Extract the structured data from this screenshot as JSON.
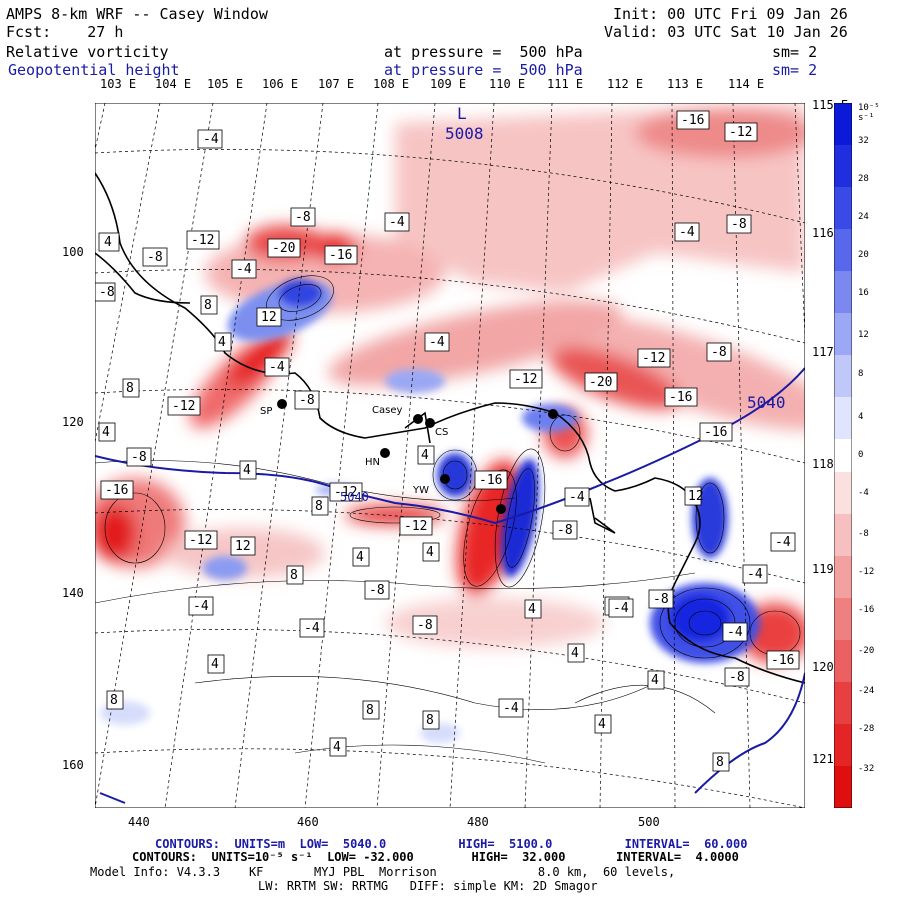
{
  "header": {
    "title": "AMPS 8-km WRF -- Casey Window",
    "forecast_label": "Fcst:    27 h",
    "init": "Init: 00 UTC Fri 09 Jan 26",
    "valid": "Valid: 03 UTC Sat 10 Jan 26",
    "field1": "Relative vorticity",
    "field2": "Geopotential height",
    "pressure1": "at pressure =  500 hPa",
    "pressure2": "at pressure =  500 hPa",
    "sm1": "sm= 2",
    "sm2": "sm= 2"
  },
  "top_longitudes": [
    "103 E",
    "104 E",
    "105 E",
    "106 E",
    "107 E",
    "108 E",
    "109 E",
    "110 E",
    "111 E",
    "112 E",
    "113 E",
    "114 E"
  ],
  "right_longitudes": [
    "115 E",
    "116 E",
    "117 E",
    "118 E",
    "119 E",
    "120 E",
    "121 E"
  ],
  "y_ticks": [
    "100",
    "120",
    "140",
    "160"
  ],
  "x_ticks": [
    "440",
    "460",
    "480",
    "500"
  ],
  "colorbar": {
    "unit": "10⁻⁵ s⁻¹",
    "labels": [
      "32",
      "28",
      "24",
      "20",
      "16",
      "12",
      "8",
      "4",
      "0",
      "-4",
      "-8",
      "-12",
      "-16",
      "-20",
      "-24",
      "-28",
      "-32"
    ]
  },
  "stations": [
    "Casey",
    "CS",
    "HN",
    "YW",
    "SP"
  ],
  "height_labels": [
    "L",
    "5008",
    "5040",
    "5040"
  ],
  "contour_labels": [
    "-4",
    "-16",
    "-12",
    "-8",
    "-8",
    "-4",
    "-4",
    "-8",
    "-12",
    "-20",
    "-16",
    "-8",
    "4",
    "-4",
    "8",
    "12",
    "4",
    "-4",
    "8",
    "-12",
    "4",
    "-8",
    "-4",
    "-12",
    "-20",
    "-16",
    "-12",
    "-8",
    "-16",
    "4",
    "-8",
    "-16",
    "8",
    "12",
    "-12",
    "4",
    "-16",
    "-12",
    "12",
    "-8",
    "-4",
    "-4",
    "-4",
    "4",
    "8",
    "4",
    "-8",
    "-4",
    "8",
    "-8",
    "4",
    "4",
    "8",
    "8",
    "4",
    "-4",
    "8",
    "-4",
    "-4",
    "4",
    "4",
    "-12",
    "4",
    "-8",
    "-8",
    "-4",
    "-4",
    "-16"
  ],
  "footer": {
    "line1": "CONTOURS:  UNITS=m  LOW=  5040.0          HIGH=  5100.0          INTERVAL=  60.000",
    "line2": "CONTOURS:  UNITS=10⁻⁵ s⁻¹  LOW= -32.000        HIGH=  32.000       INTERVAL=  4.0000",
    "line3": "Model Info: V4.3.3    KF       MYJ PBL  Morrison              8.0 km,  60 levels,",
    "line4": "LW: RRTM SW: RRTMG   DIFF: simple KM: 2D Smagor"
  },
  "colors": {
    "blue_contour": "#1a1aa6",
    "neg": "#e8151b",
    "pos": "#1a2ee0"
  }
}
